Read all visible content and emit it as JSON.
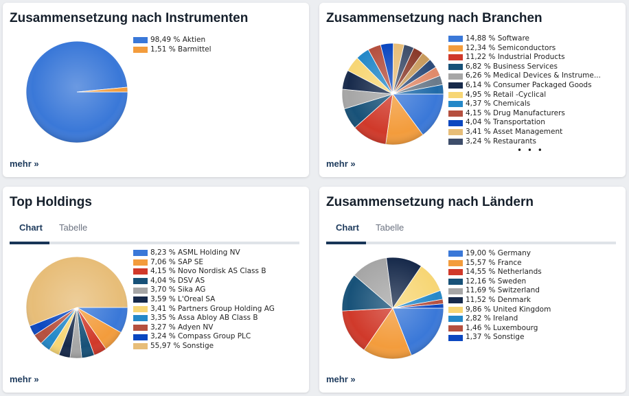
{
  "more_label": "mehr »",
  "cards": [
    {
      "title": "Zusammensetzung nach Instrumenten",
      "items": [
        {
          "value": 98.49,
          "label": "98,49 % Aktien",
          "color": "#3a78d8"
        },
        {
          "value": 1.51,
          "label": "1,51 % Barmittel",
          "color": "#f39c3c"
        }
      ]
    },
    {
      "title": "Zusammensetzung nach Branchen",
      "more_indicator": "• • •",
      "items": [
        {
          "value": 14.88,
          "label": "14,88 % Software",
          "color": "#3a78d8"
        },
        {
          "value": 12.34,
          "label": "12,34 % Semiconductors",
          "color": "#f39c3c"
        },
        {
          "value": 11.22,
          "label": "11,22 % Industrial Products",
          "color": "#d0392a"
        },
        {
          "value": 6.82,
          "label": "6,82 % Business Services",
          "color": "#175178"
        },
        {
          "value": 6.26,
          "label": "6,26 % Medical Devices & Instrume...",
          "color": "#a6a6a6"
        },
        {
          "value": 6.14,
          "label": "6,14 % Consumer Packaged Goods",
          "color": "#172a4b"
        },
        {
          "value": 4.95,
          "label": "4,95 % Retail -Cyclical",
          "color": "#f7d675"
        },
        {
          "value": 4.37,
          "label": "4,37 % Chemicals",
          "color": "#2488c8"
        },
        {
          "value": 4.15,
          "label": "4,15 % Drug Manufacturers",
          "color": "#b5503f"
        },
        {
          "value": 4.04,
          "label": "4,04 % Transportation",
          "color": "#0b47c0"
        },
        {
          "value": 3.41,
          "label": "3,41 % Asset Management",
          "color": "#e7bd78"
        },
        {
          "value": 3.24,
          "label": "3,24 % Restaurants",
          "color": "#3d4d6a"
        }
      ],
      "other_values": [
        3.2,
        3.1,
        3.0,
        3.0,
        2.9,
        2.98
      ],
      "other_colors": [
        "#8a3a2a",
        "#c89a5c",
        "#2c4a78",
        "#e08a6a",
        "#6a7a8a",
        "#1f6aa8"
      ]
    },
    {
      "title": "Top Holdings",
      "tabs": [
        "Chart",
        "Tabelle"
      ],
      "active_tab": 0,
      "items": [
        {
          "value": 8.23,
          "label": "8,23 % ASML Holding NV",
          "color": "#3a78d8"
        },
        {
          "value": 7.06,
          "label": "7,06 % SAP SE",
          "color": "#f39c3c"
        },
        {
          "value": 4.15,
          "label": "4,15 % Novo Nordisk AS Class B",
          "color": "#d0392a"
        },
        {
          "value": 4.04,
          "label": "4,04 % DSV AS",
          "color": "#175178"
        },
        {
          "value": 3.7,
          "label": "3,70 % Sika AG",
          "color": "#a6a6a6"
        },
        {
          "value": 3.59,
          "label": "3,59 % L'Oreal SA",
          "color": "#172a4b"
        },
        {
          "value": 3.41,
          "label": "3,41 % Partners Group Holding AG",
          "color": "#f7d675"
        },
        {
          "value": 3.35,
          "label": "3,35 % Assa Abloy AB Class B",
          "color": "#2488c8"
        },
        {
          "value": 3.27,
          "label": "3,27 % Adyen NV",
          "color": "#b5503f"
        },
        {
          "value": 3.24,
          "label": "3,24 % Compass Group PLC",
          "color": "#0b47c0"
        },
        {
          "value": 55.97,
          "label": "55,97 % Sonstige",
          "color": "#e7bd78"
        }
      ]
    },
    {
      "title": "Zusammensetzung nach Ländern",
      "tabs": [
        "Chart",
        "Tabelle"
      ],
      "active_tab": 0,
      "items": [
        {
          "value": 19.0,
          "label": "19,00 % Germany",
          "color": "#3a78d8"
        },
        {
          "value": 15.57,
          "label": "15,57 % France",
          "color": "#f39c3c"
        },
        {
          "value": 14.55,
          "label": "14,55 % Netherlands",
          "color": "#d0392a"
        },
        {
          "value": 12.16,
          "label": "12,16 % Sweden",
          "color": "#175178"
        },
        {
          "value": 11.69,
          "label": "11,69 % Switzerland",
          "color": "#a6a6a6"
        },
        {
          "value": 11.52,
          "label": "11,52 % Denmark",
          "color": "#172a4b"
        },
        {
          "value": 9.86,
          "label": "9,86 % United Kingdom",
          "color": "#f7d675"
        },
        {
          "value": 2.82,
          "label": "2,82 % Ireland",
          "color": "#2488c8"
        },
        {
          "value": 1.46,
          "label": "1,46 % Luxembourg",
          "color": "#b5503f"
        },
        {
          "value": 1.37,
          "label": "1,37 % Sonstige",
          "color": "#0b47c0"
        }
      ]
    }
  ]
}
